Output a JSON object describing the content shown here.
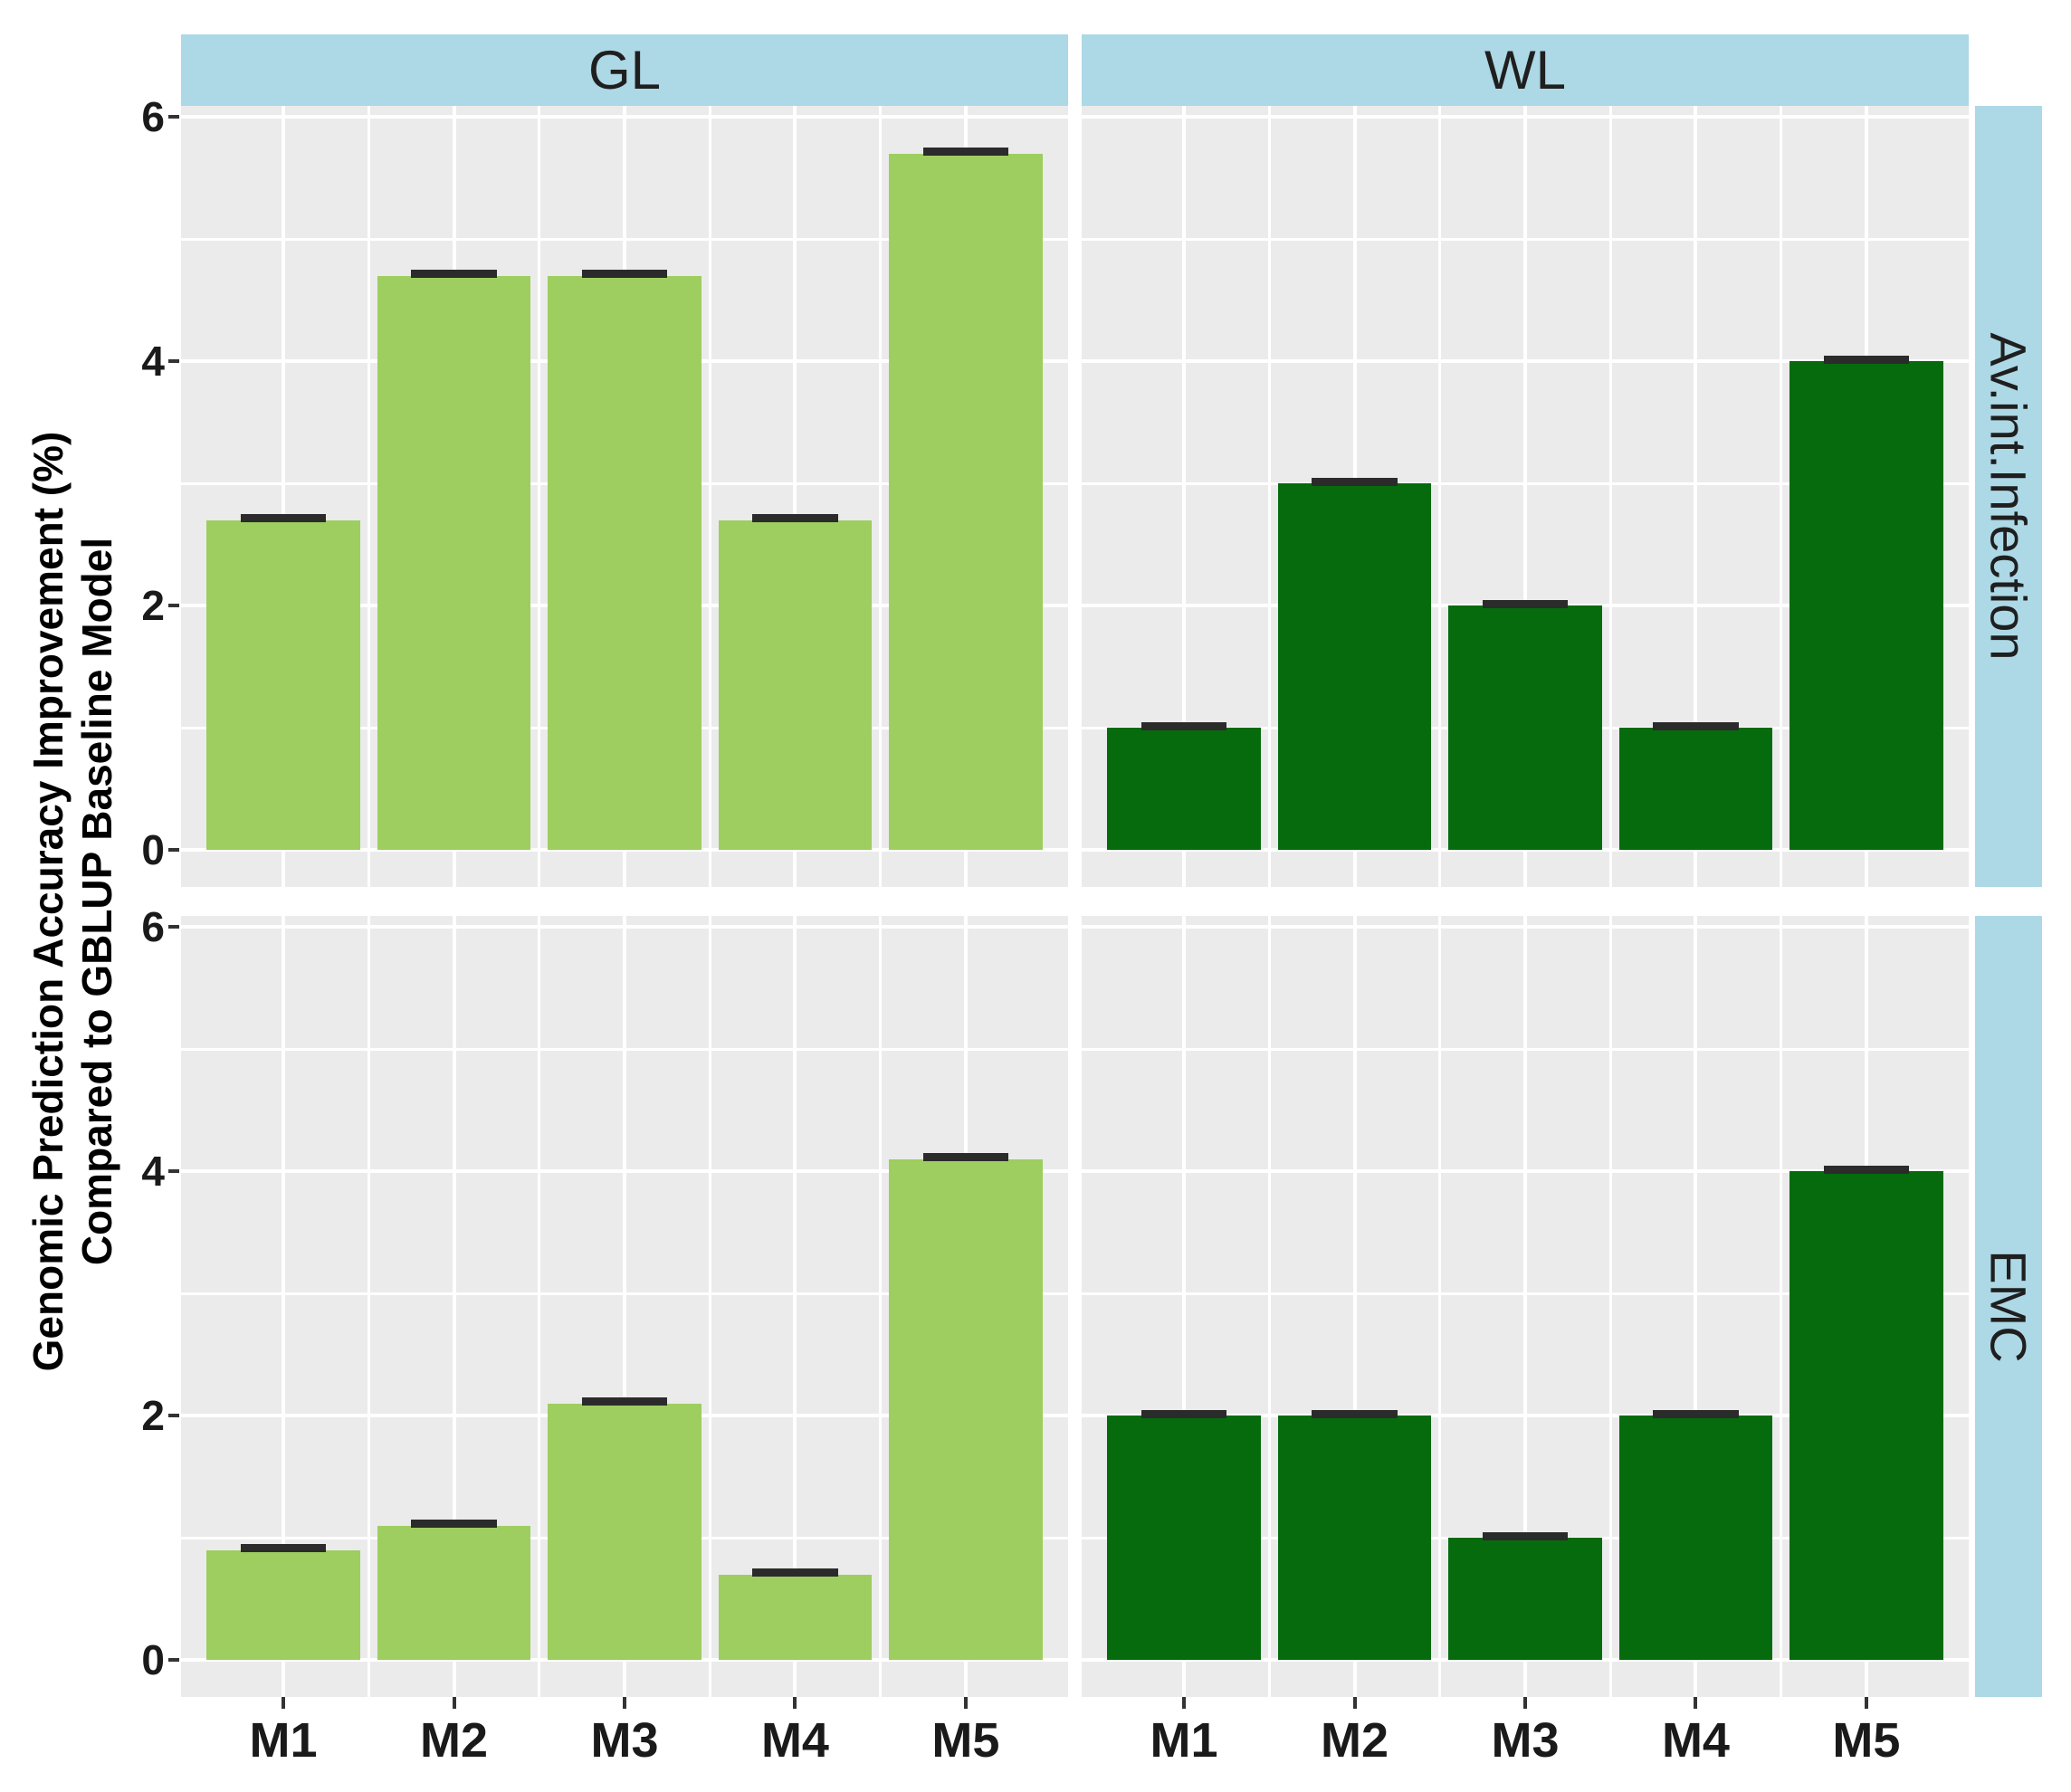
{
  "colors": {
    "strip_bg": "#ADD8E6",
    "panel_bg": "#EBEBEB",
    "gridline": "#FFFFFF",
    "error_bar": "#2B2B2B",
    "gl_bar": "#9DCE5F",
    "wl_bar": "#056B0D"
  },
  "facets": {
    "cols": [
      "GL",
      "WL"
    ],
    "rows": [
      "Av.int.Infection",
      "EMC"
    ]
  },
  "y_axis": {
    "title_line1": "Genomic Prediction Accuracy Improvement (%)",
    "title_line2": "Compared to GBLUP Baseline Model",
    "major_ticks": [
      0,
      2,
      4,
      6
    ],
    "minor_ticks": [
      1,
      3,
      5
    ],
    "range": [
      -0.3,
      6.09
    ]
  },
  "x_axis": {
    "categories": [
      "M1",
      "M2",
      "M3",
      "M4",
      "M5"
    ]
  },
  "chart_data": {
    "type": "bar",
    "categories": [
      "M1",
      "M2",
      "M3",
      "M4",
      "M5"
    ],
    "title": "",
    "xlabel": "",
    "ylabel": "Genomic Prediction Accuracy Improvement (%) Compared to GBLUP Baseline Model",
    "ylim": [
      0,
      6
    ],
    "grid": true,
    "legend": false,
    "facet_cols": [
      "GL",
      "WL"
    ],
    "facet_rows": [
      "Av.int.Infection",
      "EMC"
    ],
    "panels": [
      {
        "row": "Av.int.Infection",
        "col": "GL",
        "color": "#9DCE5F",
        "values": [
          2.7,
          4.7,
          4.7,
          2.7,
          5.7
        ],
        "errors": [
          0.05,
          0.05,
          0.05,
          0.05,
          0.05
        ]
      },
      {
        "row": "Av.int.Infection",
        "col": "WL",
        "color": "#056B0D",
        "values": [
          1.0,
          3.0,
          2.0,
          1.0,
          4.0
        ],
        "errors": [
          0.05,
          0.05,
          0.05,
          0.05,
          0.05
        ]
      },
      {
        "row": "EMC",
        "col": "GL",
        "color": "#9DCE5F",
        "values": [
          0.9,
          1.1,
          2.1,
          0.7,
          4.1
        ],
        "errors": [
          0.05,
          0.05,
          0.05,
          0.05,
          0.05
        ]
      },
      {
        "row": "EMC",
        "col": "WL",
        "color": "#056B0D",
        "values": [
          2.0,
          2.0,
          1.0,
          2.0,
          4.0
        ],
        "errors": [
          0.05,
          0.05,
          0.05,
          0.05,
          0.05
        ]
      }
    ]
  }
}
